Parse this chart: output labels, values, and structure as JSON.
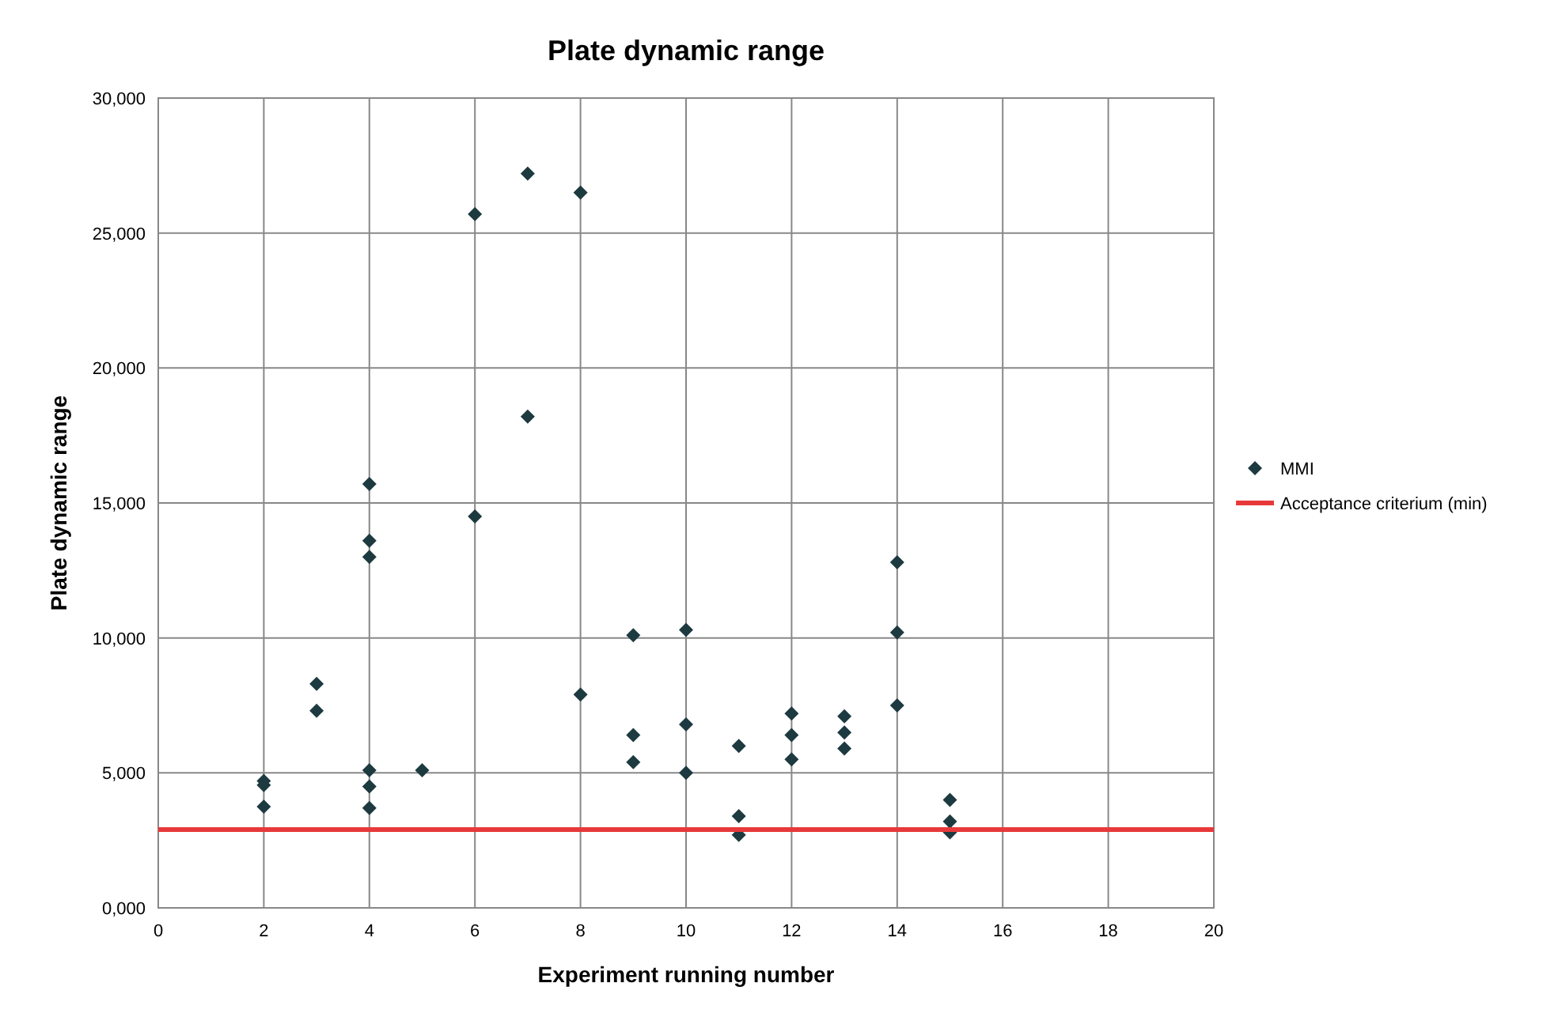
{
  "chart_data": {
    "type": "scatter",
    "title": "Plate dynamic range",
    "xlabel": "Experiment running number",
    "ylabel": "Plate dynamic range",
    "xlim": [
      0,
      20
    ],
    "xticks": [
      0,
      2,
      4,
      6,
      8,
      10,
      12,
      14,
      16,
      18,
      20
    ],
    "ylim": [
      0,
      30000
    ],
    "yticks": [
      {
        "value": 0,
        "label": "0,000"
      },
      {
        "value": 5000,
        "label": "5,000"
      },
      {
        "value": 10000,
        "label": "10,000"
      },
      {
        "value": 15000,
        "label": "15,000"
      },
      {
        "value": 20000,
        "label": "20,000"
      },
      {
        "value": 25000,
        "label": "25,000"
      },
      {
        "value": 30000,
        "label": "30,000"
      }
    ],
    "grid": true,
    "legend": "right",
    "series": [
      {
        "name": "MMI",
        "color": "#1d3a40",
        "marker": "diamond",
        "x": [
          2,
          2,
          2,
          3,
          3,
          4,
          4,
          4,
          4,
          4,
          4,
          5,
          6,
          6,
          7,
          7,
          8,
          8,
          9,
          9,
          9,
          10,
          10,
          10,
          11,
          11,
          11,
          12,
          12,
          12,
          13,
          13,
          13,
          14,
          14,
          14,
          15,
          15,
          15
        ],
        "values": [
          4700,
          4550,
          3750,
          8300,
          7300,
          15700,
          13600,
          13000,
          5100,
          4500,
          3700,
          5100,
          25700,
          14500,
          27200,
          18200,
          26500,
          7900,
          10100,
          6400,
          5400,
          10300,
          6800,
          5000,
          6000,
          3400,
          2700,
          7200,
          6400,
          5500,
          7100,
          6500,
          5900,
          12800,
          10200,
          7500,
          4000,
          3200,
          2800
        ]
      },
      {
        "name": "Acceptance criterium (min)",
        "color": "#e8393a",
        "type": "line",
        "marker": "none",
        "x": [
          0,
          20
        ],
        "values": [
          2900,
          2900
        ]
      }
    ]
  }
}
